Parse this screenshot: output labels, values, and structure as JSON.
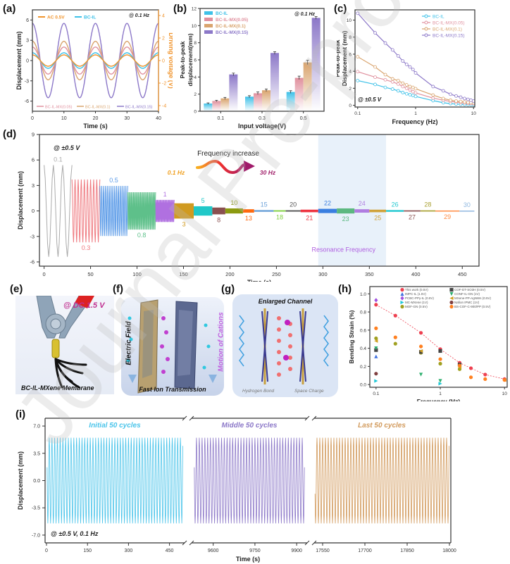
{
  "panel_labels": {
    "a": "(a)",
    "b": "(b)",
    "c": "(c)",
    "d": "(d)",
    "e": "(e)",
    "f": "(f)",
    "g": "(g)",
    "h": "(h)",
    "i": "(i)"
  },
  "watermark": "Journal Pre-proofs",
  "colors": {
    "bc_il": "#3ec1e8",
    "mx005": "#e0909e",
    "mx01": "#d9a46e",
    "mx015": "#8c78c8",
    "ac": "#f0942c",
    "resonance_band": "#e8f1fa",
    "resonance_text": "#b060e0"
  },
  "chart_data": [
    {
      "id": "a",
      "type": "line",
      "title": "",
      "annotation": "@ 0.1 Hz",
      "xlabel": "Time (s)",
      "ylabel": "Displacement (mm)",
      "y2label": "Driving voltage (V)",
      "xlim": [
        0,
        40
      ],
      "ylim": [
        -7.5,
        7.5
      ],
      "y2lim": [
        -4.5,
        4.5
      ],
      "xticks": [
        0,
        10,
        20,
        30,
        40
      ],
      "yticks": [
        -6,
        -3,
        0,
        3,
        6
      ],
      "y2ticks": [
        -4,
        -2,
        0,
        2,
        4
      ],
      "frequency_hz": 0.1,
      "legend_top": [
        "AC 0.5V",
        "BC-IL"
      ],
      "legend_bottom": [
        "BC-IL-MX(0.05)",
        "BC-IL-MX(0.1)",
        "BC-IL-MX(0.15)"
      ],
      "series": [
        {
          "name": "AC 0.5V",
          "amplitude": 0.5,
          "axis": "right",
          "color": "#f0942c"
        },
        {
          "name": "BC-IL",
          "amplitude": 1.15,
          "axis": "left",
          "color": "#3ec1e8"
        },
        {
          "name": "BC-IL-MX(0.05)",
          "amplitude": 2.0,
          "axis": "left",
          "color": "#e0909e"
        },
        {
          "name": "BC-IL-MX(0.1)",
          "amplitude": 2.85,
          "axis": "left",
          "color": "#d9a46e"
        },
        {
          "name": "BC-IL-MX(0.15)",
          "amplitude": 5.5,
          "axis": "left",
          "color": "#8c78c8"
        }
      ]
    },
    {
      "id": "b",
      "type": "bar",
      "annotation": "@ 0.1 Hz",
      "xlabel": "Input voltage(V)",
      "ylabel": "Peak-to-peak displacement(mm)",
      "ylim": [
        0,
        12
      ],
      "yticks": [
        0,
        2,
        4,
        6,
        8,
        10,
        12
      ],
      "categories": [
        "0.1",
        "0.3",
        "0.5"
      ],
      "series": [
        {
          "name": "BC-IL",
          "values": [
            0.9,
            1.7,
            2.25
          ],
          "errors": [
            0.08,
            0.12,
            0.15
          ],
          "color": "#3ec1e8"
        },
        {
          "name": "BC-IL-MX(0.05)",
          "values": [
            1.2,
            2.1,
            3.9
          ],
          "errors": [
            0.08,
            0.15,
            0.2
          ],
          "color": "#e0909e"
        },
        {
          "name": "BC-IL-MX(0.1)",
          "values": [
            1.5,
            2.45,
            5.7
          ],
          "errors": [
            0.12,
            0.15,
            0.25
          ],
          "color": "#d9a46e"
        },
        {
          "name": "BC-IL-MX(0.15)",
          "values": [
            4.3,
            6.8,
            10.9
          ],
          "errors": [
            0.15,
            0.15,
            0.15
          ],
          "color": "#8c78c8"
        }
      ]
    },
    {
      "id": "c",
      "type": "line",
      "annotation": "@ ±0.5 V",
      "xlabel": "Frequency (Hz)",
      "ylabel": "Peak-to-peak Displacement (mm)",
      "xscale": "log",
      "xlim": [
        0.1,
        10
      ],
      "ylim": [
        -0.2,
        11.2
      ],
      "xticks": [
        "0.1",
        "1",
        "10"
      ],
      "yticks": [
        0,
        2,
        4,
        6,
        8,
        10
      ],
      "x": [
        0.1,
        0.2,
        0.3,
        0.4,
        0.5,
        0.6,
        0.7,
        0.8,
        0.9,
        1,
        2,
        3,
        4,
        5,
        6,
        7,
        8,
        9,
        10
      ],
      "series": [
        {
          "name": "BC-IL",
          "color": "#3ec1e8",
          "values": [
            2.9,
            2.45,
            2.1,
            1.9,
            1.7,
            1.5,
            1.35,
            1.25,
            1.15,
            1.05,
            0.55,
            0.3,
            0.2,
            0.15,
            0.12,
            0.1,
            0.09,
            0.08,
            0.07
          ]
        },
        {
          "name": "BC-IL-MX(0.05)",
          "color": "#e0909e",
          "values": [
            3.95,
            3.3,
            3.0,
            2.75,
            2.5,
            2.2,
            2.0,
            1.8,
            1.6,
            1.45,
            0.85,
            0.6,
            0.45,
            0.38,
            0.32,
            0.28,
            0.25,
            0.22,
            0.2
          ]
        },
        {
          "name": "BC-IL-MX(0.1)",
          "color": "#d9a46e",
          "values": [
            5.7,
            4.5,
            3.6,
            3.1,
            2.9,
            2.6,
            2.4,
            2.2,
            2.1,
            1.95,
            1.2,
            0.8,
            0.6,
            0.5,
            0.45,
            0.4,
            0.35,
            0.32,
            0.3
          ]
        },
        {
          "name": "BC-IL-MX(0.15)",
          "color": "#8c78c8",
          "values": [
            10.8,
            8.5,
            7.3,
            6.5,
            5.8,
            5.2,
            4.8,
            4.5,
            4.2,
            3.8,
            2.2,
            1.7,
            1.3,
            1.1,
            0.95,
            0.8,
            0.7,
            0.6,
            0.5
          ]
        }
      ]
    },
    {
      "id": "d",
      "type": "line",
      "annotation": "@ ±0.5 V",
      "arrow_title": "Frequency increase",
      "arrow_start": "0.1 Hz",
      "arrow_end": "30 Hz",
      "resonance_label": "Resonance Frequency",
      "resonance_range": [
        295,
        368
      ],
      "xlabel": "Time (s)",
      "ylabel": "Displacement (mm)",
      "xlim": [
        -5,
        468
      ],
      "ylim": [
        -6.5,
        9
      ],
      "xticks": [
        0,
        50,
        100,
        150,
        200,
        250,
        300,
        350,
        400,
        450
      ],
      "yticks": [
        -6,
        -3,
        0,
        3,
        6,
        9
      ],
      "segments": [
        {
          "label": "0.1",
          "freq": 0.1,
          "t0": 0,
          "t1": 30,
          "amp": 5.4,
          "color": "#aaaaaa",
          "label_pos": "top"
        },
        {
          "label": "0.3",
          "freq": 0.3,
          "t0": 30,
          "t1": 60,
          "amp": 3.7,
          "color": "#ef7a80",
          "label_pos": "bottom"
        },
        {
          "label": "0.5",
          "freq": 0.5,
          "t0": 60,
          "t1": 90,
          "amp": 2.95,
          "color": "#5b9be8",
          "label_pos": "top"
        },
        {
          "label": "0.8",
          "freq": 0.8,
          "t0": 90,
          "t1": 120,
          "amp": 2.2,
          "color": "#5ec08a",
          "label_pos": "bottom"
        },
        {
          "label": "1",
          "freq": 1,
          "t0": 120,
          "t1": 140,
          "amp": 1.3,
          "color": "#b070e0",
          "label_pos": "top"
        },
        {
          "label": "3",
          "freq": 3,
          "t0": 140,
          "t1": 161,
          "amp": 0.9,
          "color": "#d09a20",
          "label_pos": "bottom"
        },
        {
          "label": "5",
          "freq": 5,
          "t0": 161,
          "t1": 181,
          "amp": 0.55,
          "color": "#20c8c8",
          "label_pos": "top"
        },
        {
          "label": "8",
          "freq": 8,
          "t0": 181,
          "t1": 195,
          "amp": 0.4,
          "color": "#8a5050",
          "label_pos": "bottom"
        },
        {
          "label": "10",
          "freq": 10,
          "t0": 195,
          "t1": 214,
          "amp": 0.3,
          "color": "#8c9a10",
          "label_pos": "top"
        },
        {
          "label": "13",
          "freq": 13,
          "t0": 214,
          "t1": 226,
          "amp": 0.2,
          "color": "#ff6a10",
          "label_pos": "bottom"
        },
        {
          "label": "15",
          "freq": 15,
          "t0": 226,
          "t1": 247,
          "amp": 0.1,
          "color": "#6aa0d8",
          "label_pos": "top"
        },
        {
          "label": "18",
          "freq": 18,
          "t0": 247,
          "t1": 260,
          "amp": 0.08,
          "color": "#80d040",
          "label_pos": "bottom"
        },
        {
          "label": "20",
          "freq": 20,
          "t0": 260,
          "t1": 276,
          "amp": 0.08,
          "color": "#555555",
          "label_pos": "top"
        },
        {
          "label": "21",
          "freq": 21,
          "t0": 276,
          "t1": 295,
          "amp": 0.15,
          "color": "#ee3340",
          "label_pos": "bottom"
        },
        {
          "label": "22",
          "freq": 22,
          "t0": 295,
          "t1": 315,
          "amp": 0.25,
          "color": "#3a7fe0",
          "label_pos": "top"
        },
        {
          "label": "23",
          "freq": 23,
          "t0": 315,
          "t1": 334,
          "amp": 0.3,
          "color": "#5cb880",
          "label_pos": "bottom"
        },
        {
          "label": "24",
          "freq": 24,
          "t0": 334,
          "t1": 350,
          "amp": 0.2,
          "color": "#b07de0",
          "label_pos": "top"
        },
        {
          "label": "25",
          "freq": 25,
          "t0": 350,
          "t1": 368,
          "amp": 0.15,
          "color": "#d0a23a",
          "label_pos": "bottom"
        },
        {
          "label": "26",
          "freq": 26,
          "t0": 368,
          "t1": 387,
          "amp": 0.1,
          "color": "#20c8d0",
          "label_pos": "top"
        },
        {
          "label": "27",
          "freq": 27,
          "t0": 387,
          "t1": 405,
          "amp": 0.07,
          "color": "#8a5050",
          "label_pos": "bottom"
        },
        {
          "label": "28",
          "freq": 28,
          "t0": 405,
          "t1": 421,
          "amp": 0.07,
          "color": "#a8a030",
          "label_pos": "top"
        },
        {
          "label": "29",
          "freq": 29,
          "t0": 421,
          "t1": 447,
          "amp": 0.05,
          "color": "#ff8a40",
          "label_pos": "bottom"
        },
        {
          "label": "30",
          "freq": 30,
          "t0": 447,
          "t1": 463,
          "amp": 0.04,
          "color": "#90b8e0",
          "label_pos": "top"
        }
      ]
    },
    {
      "id": "h",
      "type": "scatter",
      "xlabel": "Frequency (Hz)",
      "ylabel": "Bending Strain (%)",
      "xscale": "log",
      "xlim": [
        0.08,
        11
      ],
      "ylim": [
        -0.03,
        1.08
      ],
      "xticks": [
        "0.1",
        "1",
        "10"
      ],
      "yticks": [
        "0.0",
        "0.2",
        "0.4",
        "0.6",
        "0.8",
        "1.0"
      ],
      "series": [
        {
          "name": "This work (0.5V)",
          "color": "#ee4050",
          "marker": "circle",
          "fit": true,
          "points": [
            [
              0.1,
              0.88
            ],
            [
              0.2,
              0.76
            ],
            [
              0.5,
              0.57
            ],
            [
              1,
              0.39
            ],
            [
              2,
              0.24
            ],
            [
              3,
              0.18
            ],
            [
              5,
              0.11
            ],
            [
              10,
              0.06
            ]
          ]
        },
        {
          "name": "IMPC-IL (1.5V)",
          "color": "#4070e0",
          "marker": "triangle-up",
          "points": [
            [
              0.1,
              0.31
            ]
          ]
        },
        {
          "name": "PCBC-PPy-IL (0.5V)",
          "color": "#a050e0",
          "marker": "diamond",
          "points": [
            [
              0.1,
              0.93
            ]
          ]
        },
        {
          "name": "MC-MXene (1V)",
          "color": "#20c8d8",
          "marker": "triangle-right",
          "points": [
            [
              0.1,
              0.04
            ],
            [
              1,
              0.01
            ]
          ]
        },
        {
          "name": "MOF-GN (0.5V)",
          "color": "#a0a020",
          "marker": "half-circle",
          "points": [
            [
              0.1,
              0.51
            ],
            [
              0.2,
              0.45
            ],
            [
              0.5,
              0.35
            ],
            [
              1,
              0.23
            ],
            [
              2,
              0.17
            ]
          ]
        },
        {
          "name": "COF-DT-SO3H (0.5V)",
          "color": "#444444",
          "marker": "square-half",
          "points": [
            [
              0.1,
              0.38
            ],
            [
              0.5,
              0.36
            ],
            [
              1,
              0.37
            ],
            [
              2,
              0.22
            ]
          ]
        },
        {
          "name": "CONF-IL-GN (1V)",
          "color": "#30b070",
          "marker": "triangle-down",
          "points": [
            [
              0.1,
              0.4
            ],
            [
              0.5,
              0.11
            ],
            [
              1,
              0.04
            ]
          ]
        },
        {
          "name": "MXene-PP-AgNWs (0.5V)",
          "color": "#d0a020",
          "marker": "triangle-left",
          "points": [
            [
              0.1,
              0.48
            ],
            [
              0.5,
              0.37
            ],
            [
              2,
              0.19
            ],
            [
              10,
              0.05
            ]
          ]
        },
        {
          "name": "Nafion IPMC (1V)",
          "color": "#804040",
          "marker": "half-circle-top",
          "points": [
            [
              0.1,
              0.12
            ]
          ]
        },
        {
          "name": "BS-COF-C-900/PP (0.5V)",
          "color": "#ff8020",
          "marker": "half-circle-right",
          "points": [
            [
              0.1,
              0.62
            ],
            [
              0.2,
              0.52
            ],
            [
              0.5,
              0.42
            ],
            [
              1,
              0.28
            ],
            [
              2,
              0.21
            ],
            [
              3,
              0.08
            ],
            [
              5,
              0.06
            ],
            [
              10,
              0.05
            ]
          ]
        }
      ]
    },
    {
      "id": "i",
      "type": "line",
      "annotation": "@ ±0.5 V, 0.1 Hz",
      "xlabel": "Time (s)",
      "ylabel": "Displacement (mm)",
      "ylim": [
        -8,
        8
      ],
      "yticks": [
        "-7.0",
        "-3.5",
        "0.0",
        "3.5",
        "7.0"
      ],
      "amplitude": 5.5,
      "frequency_hz": 0.1,
      "segments": [
        {
          "label": "Initial 50 cycles",
          "xlim": [
            0,
            500
          ],
          "xticks": [
            "0",
            "150",
            "300",
            "450"
          ],
          "color": "#4ac4ea"
        },
        {
          "label": "Middle 50 cycles",
          "xlim": [
            9530,
            9930
          ],
          "xticks": [
            "9600",
            "9750",
            "9900"
          ],
          "color": "#8c78c8"
        },
        {
          "label": "Last 50 cycles",
          "xlim": [
            17520,
            18000
          ],
          "xticks": [
            "17550",
            "17700",
            "17850",
            "18000"
          ],
          "color": "#d29a5c"
        }
      ]
    }
  ],
  "illustrations": {
    "e": {
      "annotation": "@ DC 1.5 V",
      "caption": "BC-IL-MXene Membrane"
    },
    "f": {
      "left_label": "Electric Field",
      "right_label": "Motion of Cations",
      "caption": "Fast Ion Transmission"
    },
    "g": {
      "title": "Enlarged Channel",
      "legend_left": "Hydrogen Bond",
      "legend_right": "Space Charge"
    }
  }
}
